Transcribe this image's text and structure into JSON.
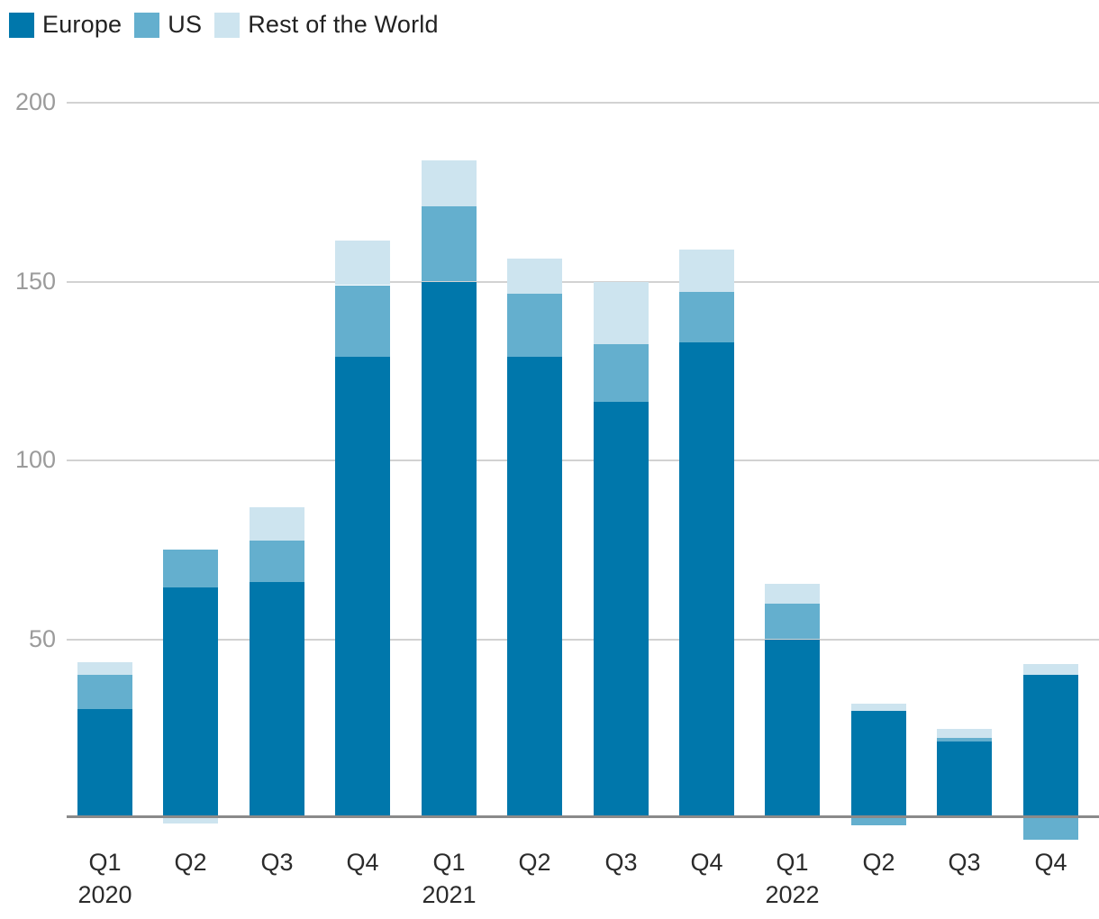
{
  "colors": {
    "europe": "#0077ab",
    "us": "#64afce",
    "rest_of_world": "#cde4ef",
    "gridline": "#d2d2d2",
    "baseline": "#8a8a8a",
    "y_tick_text": "#9b9b9b",
    "x_tick_text": "#2b2b2b",
    "legend_text": "#222222",
    "background": "#ffffff"
  },
  "legend": {
    "items": [
      {
        "label": "Europe",
        "color": "#0077ab"
      },
      {
        "label": "US",
        "color": "#64afce"
      },
      {
        "label": "Rest of the World",
        "color": "#cde4ef"
      }
    ]
  },
  "chart_data": {
    "type": "bar",
    "stacked": true,
    "grid": "horizontal",
    "legend_position": "top-left",
    "categories": [
      "Q1 2020",
      "Q2 2020",
      "Q3 2020",
      "Q4 2020",
      "Q1 2021",
      "Q2 2021",
      "Q3 2021",
      "Q4 2021",
      "Q1 2022",
      "Q2 2022",
      "Q3 2022",
      "Q4 2022"
    ],
    "x_tick_labels": [
      "Q1",
      "Q2",
      "Q3",
      "Q4",
      "Q1",
      "Q2",
      "Q3",
      "Q4",
      "Q1",
      "Q2",
      "Q3",
      "Q4"
    ],
    "year_labels": [
      {
        "bar_index": 0,
        "label": "2020"
      },
      {
        "bar_index": 4,
        "label": "2021"
      },
      {
        "bar_index": 8,
        "label": "2022"
      }
    ],
    "series": [
      {
        "name": "Europe",
        "color": "#0077ab",
        "values": [
          30.5,
          64.5,
          66,
          129,
          150,
          129,
          116.5,
          133,
          50,
          30,
          21.5,
          40
        ]
      },
      {
        "name": "US",
        "color": "#64afce",
        "values": [
          9.5,
          10.5,
          11.5,
          20,
          21,
          17.5,
          16,
          14,
          10,
          -2,
          1,
          -6
        ]
      },
      {
        "name": "Rest of the World",
        "color": "#cde4ef",
        "values": [
          3.5,
          -1.5,
          9.5,
          12.5,
          13,
          10,
          17.5,
          12,
          5.5,
          2,
          2.5,
          3
        ]
      }
    ],
    "yticks": [
      50,
      100,
      150,
      200
    ],
    "ylim": [
      -10,
      205
    ],
    "title": "",
    "xlabel": "",
    "ylabel": ""
  }
}
